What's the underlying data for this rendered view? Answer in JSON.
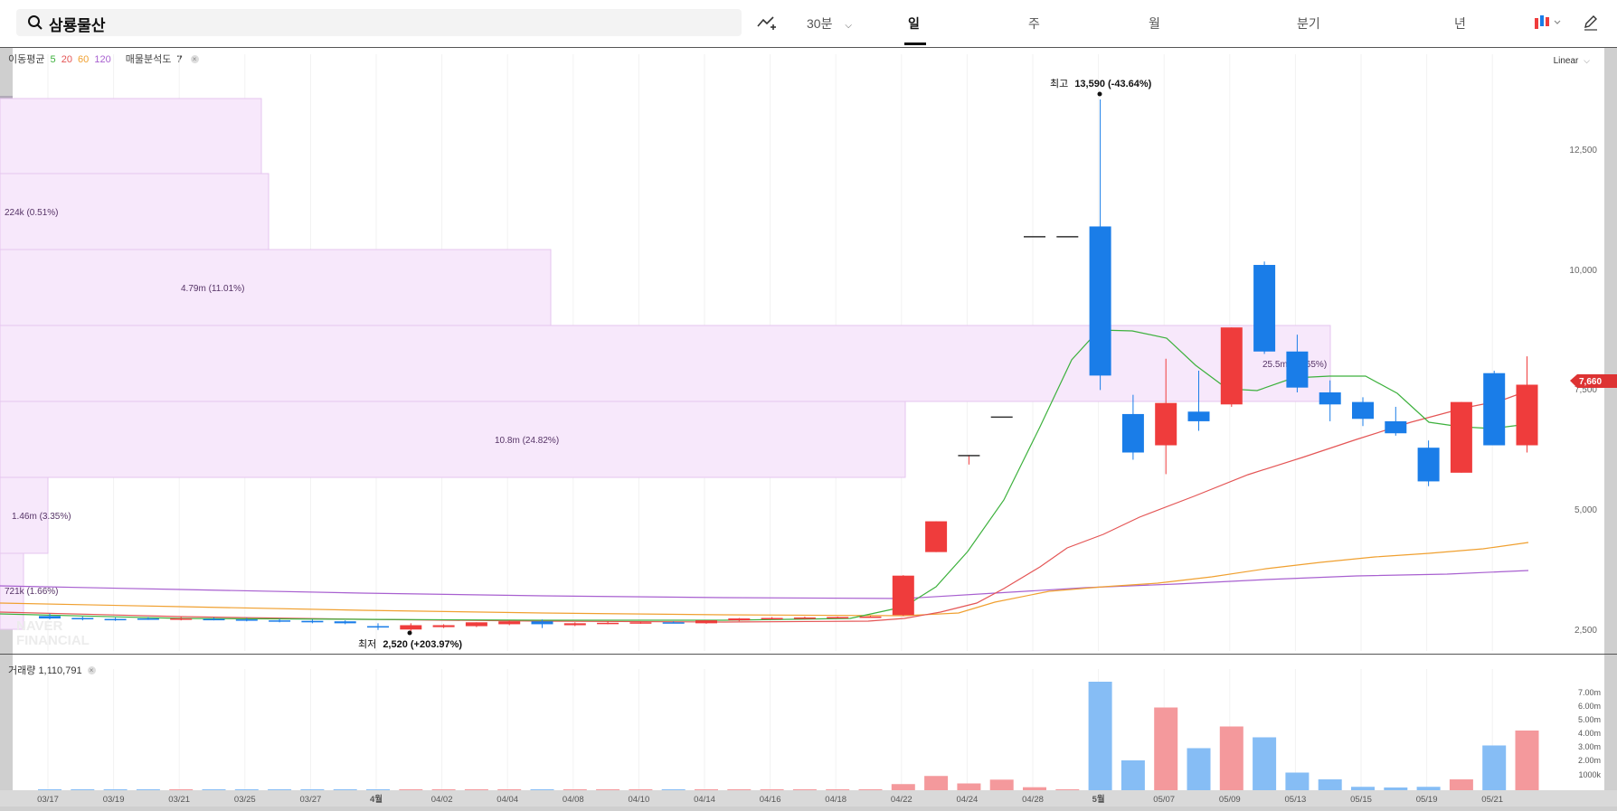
{
  "search": {
    "value": "삼룡물산"
  },
  "toolbar": {
    "interval": "30분",
    "tabs": [
      "일",
      "주",
      "월",
      "분기",
      "년"
    ],
    "active_tab": "일"
  },
  "legend": {
    "ma_label": "이동평균",
    "ma_periods": [
      "5",
      "20",
      "60",
      "120"
    ],
    "ma_colors": [
      "#3db13d",
      "#e45555",
      "#f0a030",
      "#a860d0"
    ],
    "volume_profile_label": "매물분석도",
    "volume_profile_value": "7"
  },
  "scale_mode": "Linear",
  "price_axis_labels": [
    "12,500",
    "10,000",
    "7,500",
    "5,000",
    "2,500"
  ],
  "current_price_tag": "7,660",
  "high_marker": {
    "label": "최고",
    "value": "13,590 (-43.64%)"
  },
  "low_marker": {
    "label": "최저",
    "value": "2,520 (+203.97%)"
  },
  "watermark": [
    "NAVER",
    "FINANCIAL"
  ],
  "volume_profile_labels": [
    "224k (0.51%)",
    "4.79m (11.01%)",
    "25.5m (58.65%)",
    "10.8m (24.82%)",
    "1.46m (3.35%)",
    "721k (1.66%)"
  ],
  "volume": {
    "label": "거래량",
    "value": "1,110,791",
    "axis_labels": [
      "7.00m",
      "6.00m",
      "5.00m",
      "4.00m",
      "3.00m",
      "2.00m",
      "1000k"
    ]
  },
  "date_axis": [
    "03/17",
    "03/19",
    "03/21",
    "03/25",
    "03/27",
    "4월",
    "04/02",
    "04/04",
    "04/08",
    "04/10",
    "04/14",
    "04/16",
    "04/18",
    "04/22",
    "04/24",
    "04/28",
    "5월",
    "05/07",
    "05/09",
    "05/13",
    "05/15",
    "05/19",
    "05/21"
  ],
  "chart_data": {
    "type": "candlestick",
    "ylim": [
      2000,
      13800
    ],
    "up_color": "#ef3c3c",
    "down_color": "#1a7de8",
    "candles": [
      {
        "o": 2850,
        "h": 2900,
        "l": 2780,
        "c": 2800
      },
      {
        "o": 2810,
        "h": 2840,
        "l": 2760,
        "c": 2790
      },
      {
        "o": 2790,
        "h": 2820,
        "l": 2750,
        "c": 2780
      },
      {
        "o": 2800,
        "h": 2830,
        "l": 2770,
        "c": 2790
      },
      {
        "o": 2790,
        "h": 2830,
        "l": 2760,
        "c": 2800
      },
      {
        "o": 2790,
        "h": 2820,
        "l": 2760,
        "c": 2780
      },
      {
        "o": 2780,
        "h": 2810,
        "l": 2740,
        "c": 2760
      },
      {
        "o": 2760,
        "h": 2790,
        "l": 2720,
        "c": 2740
      },
      {
        "o": 2750,
        "h": 2780,
        "l": 2700,
        "c": 2720
      },
      {
        "o": 2740,
        "h": 2760,
        "l": 2680,
        "c": 2700
      },
      {
        "o": 2640,
        "h": 2700,
        "l": 2560,
        "c": 2630
      },
      {
        "o": 2570,
        "h": 2700,
        "l": 2520,
        "c": 2660
      },
      {
        "o": 2620,
        "h": 2680,
        "l": 2600,
        "c": 2660
      },
      {
        "o": 2640,
        "h": 2720,
        "l": 2620,
        "c": 2720
      },
      {
        "o": 2680,
        "h": 2760,
        "l": 2660,
        "c": 2740
      },
      {
        "o": 2740,
        "h": 2780,
        "l": 2600,
        "c": 2680
      },
      {
        "o": 2660,
        "h": 2720,
        "l": 2640,
        "c": 2700
      },
      {
        "o": 2700,
        "h": 2740,
        "l": 2680,
        "c": 2710
      },
      {
        "o": 2710,
        "h": 2730,
        "l": 2690,
        "c": 2720
      },
      {
        "o": 2720,
        "h": 2740,
        "l": 2700,
        "c": 2710
      },
      {
        "o": 2700,
        "h": 2760,
        "l": 2690,
        "c": 2760
      },
      {
        "o": 2760,
        "h": 2810,
        "l": 2740,
        "c": 2800
      },
      {
        "o": 2800,
        "h": 2830,
        "l": 2780,
        "c": 2810
      },
      {
        "o": 2810,
        "h": 2840,
        "l": 2790,
        "c": 2820
      },
      {
        "o": 2820,
        "h": 2840,
        "l": 2800,
        "c": 2830
      },
      {
        "o": 2830,
        "h": 2850,
        "l": 2820,
        "c": 2840
      },
      {
        "o": 2870,
        "h": 3700,
        "l": 2850,
        "c": 3690
      },
      {
        "o": 4180,
        "h": 4820,
        "l": 4180,
        "c": 4820
      },
      {
        "o": 6200,
        "h": 6200,
        "l": 6000,
        "c": 6200
      },
      {
        "o": 7000,
        "h": 7000,
        "l": 7000,
        "c": 7000
      },
      {
        "o": 10750,
        "h": 10750,
        "l": 10750,
        "c": 10750
      },
      {
        "o": 10750,
        "h": 10750,
        "l": 10750,
        "c": 10750
      },
      {
        "o": 10950,
        "h": 13590,
        "l": 7550,
        "c": 7850
      },
      {
        "o": 7050,
        "h": 7450,
        "l": 6100,
        "c": 6250
      },
      {
        "o": 6400,
        "h": 8200,
        "l": 5800,
        "c": 7280
      },
      {
        "o": 7100,
        "h": 7950,
        "l": 6700,
        "c": 6900
      },
      {
        "o": 7250,
        "h": 8850,
        "l": 7200,
        "c": 8850
      },
      {
        "o": 10150,
        "h": 10220,
        "l": 8300,
        "c": 8350
      },
      {
        "o": 8350,
        "h": 8700,
        "l": 7500,
        "c": 7600
      },
      {
        "o": 7500,
        "h": 7750,
        "l": 6900,
        "c": 7250
      },
      {
        "o": 7300,
        "h": 7400,
        "l": 6800,
        "c": 6950
      },
      {
        "o": 6900,
        "h": 7200,
        "l": 6600,
        "c": 6650
      },
      {
        "o": 6350,
        "h": 6500,
        "l": 5550,
        "c": 5650
      },
      {
        "o": 5830,
        "h": 7300,
        "l": 5830,
        "c": 7300
      },
      {
        "o": 7900,
        "h": 7950,
        "l": 6400,
        "c": 6400
      },
      {
        "o": 6400,
        "h": 8250,
        "l": 6250,
        "c": 7660
      }
    ],
    "volume_series": [
      0.05,
      0.04,
      0.04,
      0.05,
      0.05,
      0.04,
      0.04,
      0.04,
      0.04,
      0.03,
      0.05,
      0.06,
      0.04,
      0.04,
      0.05,
      0.04,
      0.03,
      0.03,
      0.03,
      0.03,
      0.04,
      0.05,
      0.04,
      0.04,
      0.04,
      0.04,
      0.45,
      1.05,
      0.5,
      0.78,
      0.22,
      0.01,
      8.0,
      2.2,
      6.1,
      3.1,
      4.7,
      3.9,
      1.3,
      0.8,
      0.25,
      0.2,
      0.25,
      0.8,
      3.3,
      4.4
    ]
  }
}
